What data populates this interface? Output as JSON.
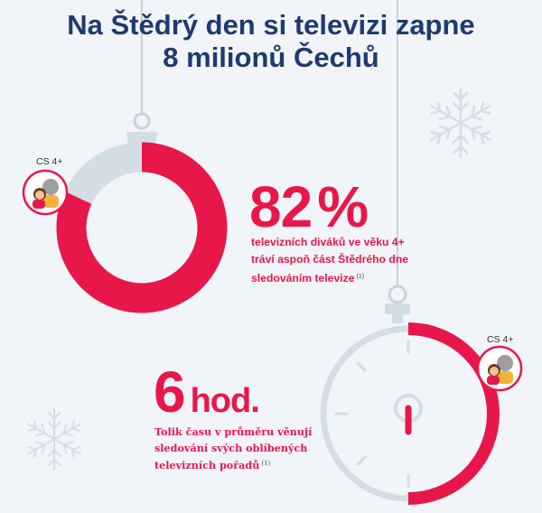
{
  "title": {
    "line1": "Na Štědrý den si televizi zapne",
    "line2": "8 milionů Čechů"
  },
  "stat_share": {
    "audience_label": "CS 4+",
    "value": "82",
    "unit": "%",
    "description_lines": [
      "televizních diváků ve věku 4+",
      "tráví aspoň část Štědrého dne",
      "sledováním televize"
    ],
    "note": "(1)",
    "fraction": 0.82
  },
  "stat_time": {
    "audience_label": "CS 4+",
    "value": "6",
    "unit": "hod.",
    "description_lines": [
      "Tolik času v průměru věnují",
      "sledování svých oblíbených",
      "televizních pořadů"
    ],
    "note": "(1)",
    "hours": 6
  },
  "colors": {
    "accent": "#e8174a",
    "title": "#1f3a6e",
    "ring_track": "#d3dde6",
    "background": "#f1f4f8"
  }
}
